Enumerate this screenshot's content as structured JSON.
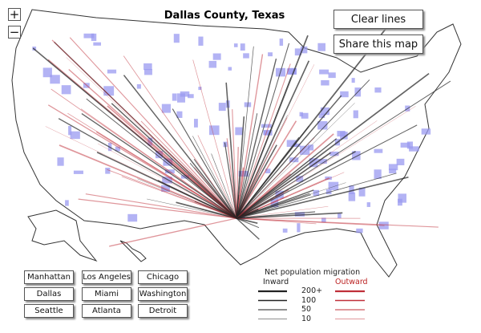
{
  "header": {
    "title": "Dallas County, Texas"
  },
  "controls": {
    "zoom_in": "+",
    "zoom_out": "−",
    "clear": "Clear lines",
    "share": "Share this map"
  },
  "cities": [
    [
      "Manhattan",
      "Los Angeles",
      "Chicago"
    ],
    [
      "Dallas",
      "Miami",
      "Washington"
    ],
    [
      "Seattle",
      "Atlanta",
      "Detroit"
    ]
  ],
  "legend": {
    "title": "Net population migration",
    "inward": "Inward",
    "outward": "Outward",
    "levels": [
      "200+",
      "100",
      "50",
      "10"
    ]
  }
}
